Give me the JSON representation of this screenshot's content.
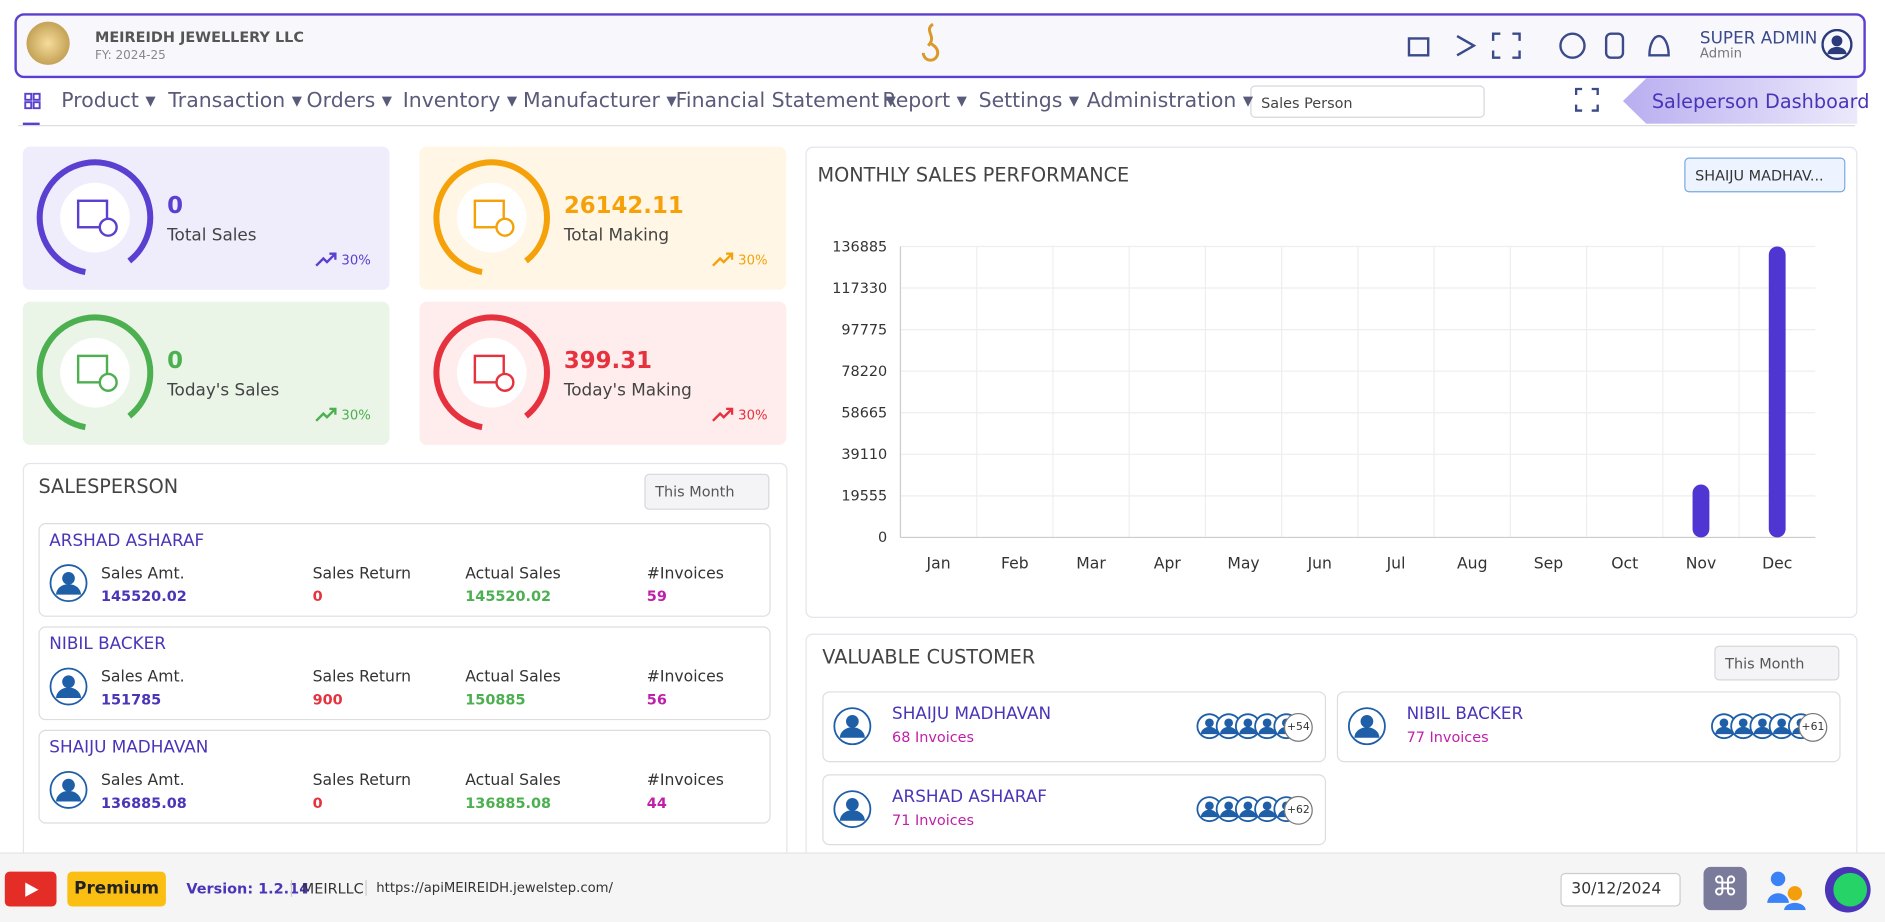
{
  "header": {
    "company": "MEIREIDH JEWELLERY LLC",
    "fy": "FY: 2024-25",
    "user": "SUPER ADMIN",
    "role": "Admin"
  },
  "nav": {
    "items": [
      "Product",
      "Transaction",
      "Orders",
      "Inventory",
      "Manufacturer",
      "Financial Statement",
      "Report",
      "Settings",
      "Administration"
    ],
    "select": "Sales Person",
    "dashboard": "Saleperson Dashboard"
  },
  "stats": [
    {
      "value": 0,
      "label": "Total Sales",
      "trend": "30%",
      "color": "#5b3fd0",
      "bg": "#efedfc"
    },
    {
      "value": 26142.11,
      "label": "Total Making",
      "trend": "30%",
      "color": "#f5a20a",
      "bg": "#fff6e6"
    },
    {
      "value": 0,
      "label": "Today's Sales",
      "trend": "30%",
      "color": "#4caf50",
      "bg": "#eaf5e8"
    },
    {
      "value": 399.31,
      "label": "Today's Making",
      "trend": "30%",
      "color": "#e5323e",
      "bg": "#ffecec"
    }
  ],
  "salesperson": {
    "title": "SALESPERSON",
    "period": "This Month",
    "columns": [
      "Sales Amt.",
      "Sales Return",
      "Actual Sales",
      "#Invoices"
    ],
    "rows": [
      {
        "name": "ARSHAD ASHARAF",
        "values": [
          145520.02,
          0,
          145520.02,
          59
        ]
      },
      {
        "name": "NIBIL BACKER",
        "values": [
          151785,
          900,
          150885,
          56
        ]
      },
      {
        "name": "SHAIJU MADHAVAN",
        "values": [
          136885.08,
          0,
          136885.08,
          44
        ]
      }
    ]
  },
  "chart_data": {
    "type": "bar",
    "title": "MONTHLY SALES PERFORMANCE",
    "filter": "SHAIJU MADHAV...",
    "categories": [
      "Jan",
      "Feb",
      "Mar",
      "Apr",
      "May",
      "Jun",
      "Jul",
      "Aug",
      "Sep",
      "Oct",
      "Nov",
      "Dec"
    ],
    "values": [
      0,
      0,
      0,
      0,
      0,
      0,
      0,
      0,
      0,
      0,
      24900,
      136885
    ],
    "color": "#4f35d2",
    "ylim": [
      0,
      136885
    ],
    "yticks": [
      0,
      19555,
      39110,
      58665,
      78220,
      97775,
      117330,
      136885
    ],
    "grid": true
  },
  "customers": {
    "title": "VALUABLE CUSTOMER",
    "period": "This Month",
    "items": [
      {
        "name": "SHAIJU MADHAVAN",
        "invoices": "68 Invoices",
        "more": "+54"
      },
      {
        "name": "NIBIL BACKER",
        "invoices": "77 Invoices",
        "more": "+61"
      },
      {
        "name": "ARSHAD ASHARAF",
        "invoices": "71 Invoices",
        "more": "+62"
      }
    ]
  },
  "footer": {
    "premium": "Premium",
    "version": "Version: 1.2.14",
    "company": "MEIRLLC",
    "url": "https://apiMEIREIDH.jewelstep.com/",
    "date": "30/12/2024"
  }
}
